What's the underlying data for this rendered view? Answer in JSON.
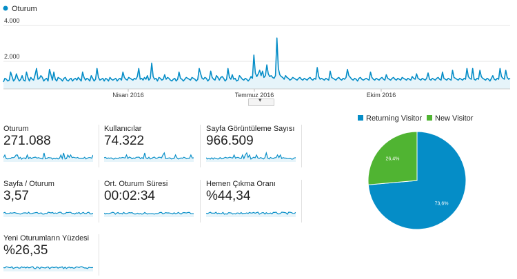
{
  "chart_data": [
    {
      "type": "area",
      "series": [
        {
          "name": "Oturum",
          "color": "#058dc7"
        }
      ],
      "y_ticks": [
        "4.000",
        "2.000"
      ],
      "ylim": [
        0,
        4000
      ],
      "x_labels": [
        "Nisan 2016",
        "Temmuz 2016",
        "Ekim 2016"
      ],
      "y": [
        850,
        1050,
        1000,
        900,
        950,
        1400,
        1150,
        900,
        1000,
        1300,
        1050,
        900,
        1000,
        1200,
        950,
        900,
        1400,
        1100,
        900,
        1100,
        1000,
        950,
        1250,
        1600,
        1000,
        1050,
        1200,
        1100,
        900,
        1000,
        1050,
        900,
        1550,
        1250,
        950,
        1400,
        1000,
        900,
        1100,
        1050,
        1000,
        900,
        1050,
        1100,
        950,
        900,
        1000,
        1050,
        900,
        1000,
        1050,
        950,
        1100,
        1000,
        900,
        1400,
        1100,
        950,
        1050,
        1000,
        900,
        1200,
        1050,
        900,
        1000,
        1600,
        1100,
        950,
        1000,
        1050,
        900,
        1050,
        1000,
        900,
        1100,
        1000,
        950,
        1000,
        1050,
        900,
        1000,
        1050,
        950,
        1400,
        1100,
        1000,
        950,
        1100,
        1050,
        1000,
        950,
        1050,
        1000,
        1150,
        1600,
        1000,
        1050,
        950,
        1100,
        1000,
        1200,
        950,
        1050,
        1900,
        1150,
        1000,
        1050,
        900,
        1100,
        1050,
        950,
        1000,
        1250,
        1000,
        1100,
        1050,
        950,
        900,
        1000,
        1050,
        900,
        1000,
        1400,
        1050,
        1000,
        900,
        1000,
        1100,
        1050,
        1000,
        950,
        1100,
        1050,
        1000,
        900,
        1000,
        1600,
        1300,
        1050,
        1000,
        1100,
        1050,
        900,
        1000,
        1450,
        1100,
        1000,
        950,
        1200,
        1100,
        950,
        1100,
        1150,
        1050,
        900,
        1000,
        1600,
        1100,
        1000,
        1250,
        1000,
        1050,
        900,
        950,
        1200,
        1100,
        1000,
        950,
        1050,
        1000,
        900,
        1000,
        1150,
        1050,
        2350,
        1350,
        1150,
        1300,
        1500,
        1200,
        1450,
        1100,
        1200,
        1800,
        1300,
        1150,
        1200,
        1100,
        1050,
        1200,
        3300,
        1600,
        1250,
        1150,
        1100,
        1000,
        1200,
        1100,
        1050,
        950,
        1000,
        1100,
        1050,
        1000,
        950,
        1050,
        1100,
        1000,
        950,
        1050,
        1000,
        950,
        1050,
        1100,
        1000,
        950,
        1050,
        1000,
        1650,
        1150,
        1000,
        1050,
        1000,
        950,
        1050,
        1000,
        950,
        1450,
        1100,
        1050,
        1000,
        950,
        1050,
        1100,
        1000,
        950,
        1050,
        1000,
        1100,
        1550,
        1200,
        1100,
        1000,
        950,
        1050,
        1000,
        900,
        1050,
        1100,
        1000,
        950,
        1000,
        1050,
        1000,
        950,
        1400,
        1100,
        1000,
        950,
        1050,
        1000,
        950,
        1050,
        1100,
        1000,
        950,
        1250,
        1050,
        1000,
        950,
        1050,
        1100,
        1000,
        950,
        1050,
        1000,
        950,
        1100,
        1050,
        1000,
        950,
        1050,
        1000,
        950,
        1150,
        1050,
        1000,
        1300,
        1050,
        1000,
        950,
        1050,
        1000,
        950,
        1050,
        1350,
        1000,
        950,
        1050,
        1000,
        950,
        1050,
        1100,
        1000,
        950,
        1400,
        1050,
        1000,
        950,
        1050,
        1000,
        950,
        1500,
        1100,
        1050,
        1000,
        950,
        1050,
        1000,
        950,
        1050,
        1000,
        1600,
        1150,
        1050,
        1000,
        1600,
        1000,
        950,
        1050,
        1000,
        1500,
        1150,
        1050,
        1000,
        950,
        1050,
        1000,
        900,
        1050,
        1200,
        1000,
        950,
        1050,
        1000,
        1600,
        1150,
        1050,
        1000,
        1500,
        1100,
        1000,
        1050
      ]
    },
    {
      "type": "pie",
      "labels": [
        "Returning Visitor",
        "New Visitor"
      ],
      "values": [
        73.6,
        26.4
      ],
      "value_labels": [
        "73,6%",
        "26,4%"
      ],
      "colors": [
        "#058dc7",
        "#50b432"
      ]
    }
  ],
  "toggle": {
    "icon": "caret-down-icon",
    "glyph": "▾"
  },
  "metrics": [
    {
      "label": "Oturum",
      "value": "271.088"
    },
    {
      "label": "Kullanıcılar",
      "value": "74.322"
    },
    {
      "label": "Sayfa Görüntüleme Sayısı",
      "value": "966.509"
    },
    {
      "label": "Sayfa / Oturum",
      "value": "3,57"
    },
    {
      "label": "Ort. Oturum Süresi",
      "value": "00:02:34"
    },
    {
      "label": "Hemen Çıkma Oranı",
      "value": "%44,34"
    },
    {
      "label": "Yeni Oturumların Yüzdesi",
      "value": "%26,35"
    }
  ]
}
